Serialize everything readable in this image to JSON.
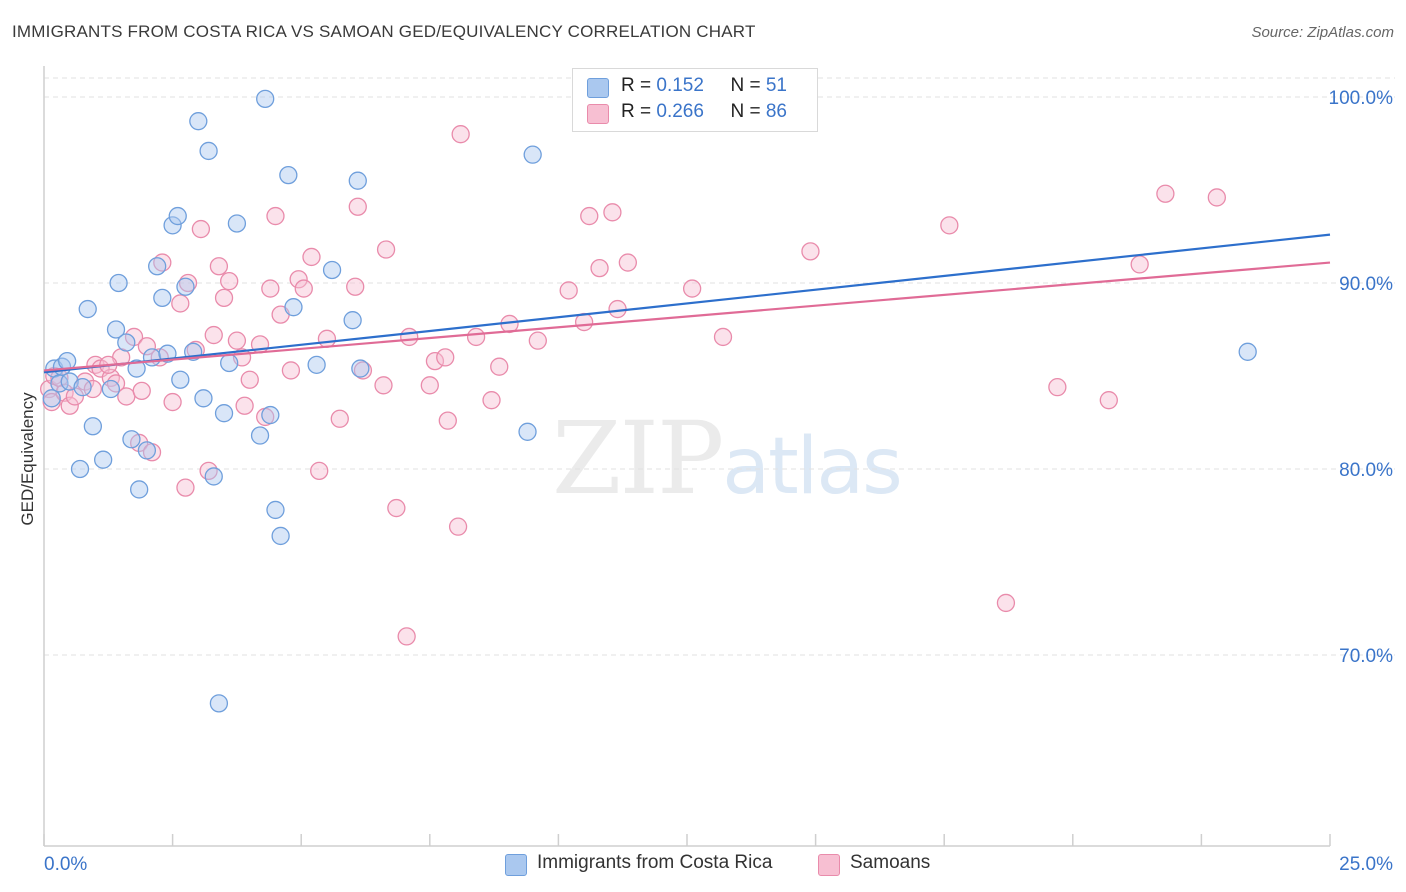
{
  "title": "IMMIGRANTS FROM COSTA RICA VS SAMOAN GED/EQUIVALENCY CORRELATION CHART",
  "source": "Source: ZipAtlas.com",
  "watermark": {
    "zip": "ZIP",
    "atlas": "atlas"
  },
  "legend": [
    {
      "r_label": "R = ",
      "r_value": "0.152",
      "n_label": "N = ",
      "n_value": "51",
      "color": "#aac8ef",
      "border": "#6f9fdc"
    },
    {
      "r_label": "R = ",
      "r_value": "0.266",
      "n_label": "N = ",
      "n_value": "86",
      "color": "#f7bfd2",
      "border": "#e98bab"
    }
  ],
  "bottom_legend": [
    {
      "label": "Immigrants from Costa Rica",
      "color": "#aac8ef",
      "border": "#6f9fdc"
    },
    {
      "label": "Samoans",
      "color": "#f7bfd2",
      "border": "#e98bab"
    }
  ],
  "chart_data": {
    "type": "scatter",
    "title": "IMMIGRANTS FROM COSTA RICA VS SAMOAN GED/EQUIVALENCY CORRELATION CHART",
    "xlabel": "",
    "ylabel": "GED/Equivalency",
    "xlim": [
      0,
      25
    ],
    "ylim": [
      61,
      102
    ],
    "x_tick_labels": [
      "0.0%",
      "25.0%"
    ],
    "y_ticks": [
      70,
      80,
      90,
      100
    ],
    "y_tick_labels": [
      "70.0%",
      "80.0%",
      "90.0%",
      "100.0%"
    ],
    "grid": true,
    "legend_position": "top-center",
    "series": [
      {
        "name": "Immigrants from Costa Rica",
        "color": "#6f9fdc",
        "fill": "#aac8ef",
        "line_color": "#2d6fcc",
        "trend": {
          "x": [
            0,
            25
          ],
          "y": [
            85.2,
            92.6
          ]
        },
        "points": [
          [
            0.15,
            83.8
          ],
          [
            0.2,
            85.4
          ],
          [
            0.3,
            84.6
          ],
          [
            0.35,
            85.5
          ],
          [
            0.45,
            85.8
          ],
          [
            0.5,
            84.7
          ],
          [
            0.7,
            80.0
          ],
          [
            0.75,
            84.4
          ],
          [
            0.85,
            88.6
          ],
          [
            0.95,
            82.3
          ],
          [
            1.15,
            80.5
          ],
          [
            1.3,
            84.3
          ],
          [
            1.4,
            87.5
          ],
          [
            1.45,
            90.0
          ],
          [
            1.6,
            86.8
          ],
          [
            1.7,
            81.6
          ],
          [
            1.8,
            85.4
          ],
          [
            1.85,
            78.9
          ],
          [
            2.0,
            81.0
          ],
          [
            2.1,
            86.0
          ],
          [
            2.2,
            90.9
          ],
          [
            2.3,
            89.2
          ],
          [
            2.4,
            86.2
          ],
          [
            2.5,
            93.1
          ],
          [
            2.6,
            93.6
          ],
          [
            2.65,
            84.8
          ],
          [
            2.75,
            89.8
          ],
          [
            2.9,
            86.3
          ],
          [
            3.0,
            98.7
          ],
          [
            3.1,
            83.8
          ],
          [
            3.2,
            97.1
          ],
          [
            3.3,
            79.6
          ],
          [
            3.4,
            67.4
          ],
          [
            3.5,
            83.0
          ],
          [
            3.6,
            85.7
          ],
          [
            3.75,
            93.2
          ],
          [
            4.2,
            81.8
          ],
          [
            4.3,
            99.9
          ],
          [
            4.5,
            77.8
          ],
          [
            4.6,
            76.4
          ],
          [
            4.75,
            95.8
          ],
          [
            4.85,
            88.7
          ],
          [
            5.3,
            85.6
          ],
          [
            5.6,
            90.7
          ],
          [
            6.0,
            88.0
          ],
          [
            6.1,
            95.5
          ],
          [
            6.15,
            85.4
          ],
          [
            9.4,
            82.0
          ],
          [
            9.5,
            96.9
          ],
          [
            23.4,
            86.3
          ],
          [
            4.4,
            82.9
          ]
        ]
      },
      {
        "name": "Samoans",
        "color": "#e98bab",
        "fill": "#f7bfd2",
        "line_color": "#e06b96",
        "trend": {
          "x": [
            0,
            25
          ],
          "y": [
            85.3,
            91.1
          ]
        },
        "points": [
          [
            0.1,
            84.3
          ],
          [
            0.15,
            83.6
          ],
          [
            0.2,
            85.0
          ],
          [
            0.3,
            84.9
          ],
          [
            0.4,
            84.1
          ],
          [
            0.5,
            83.4
          ],
          [
            0.6,
            83.9
          ],
          [
            0.8,
            84.7
          ],
          [
            0.95,
            84.3
          ],
          [
            1.0,
            85.6
          ],
          [
            1.1,
            85.4
          ],
          [
            1.3,
            84.9
          ],
          [
            1.4,
            84.6
          ],
          [
            1.5,
            86.0
          ],
          [
            1.6,
            83.9
          ],
          [
            1.75,
            87.1
          ],
          [
            1.85,
            81.4
          ],
          [
            1.9,
            84.2
          ],
          [
            2.0,
            86.6
          ],
          [
            2.1,
            80.9
          ],
          [
            2.25,
            86.0
          ],
          [
            2.3,
            91.1
          ],
          [
            2.5,
            83.6
          ],
          [
            2.65,
            88.9
          ],
          [
            2.75,
            79.0
          ],
          [
            2.8,
            90.0
          ],
          [
            2.95,
            86.4
          ],
          [
            3.05,
            92.9
          ],
          [
            3.2,
            79.9
          ],
          [
            3.3,
            87.2
          ],
          [
            3.4,
            90.9
          ],
          [
            3.5,
            89.2
          ],
          [
            3.6,
            90.1
          ],
          [
            3.75,
            86.9
          ],
          [
            3.85,
            86.0
          ],
          [
            3.9,
            83.4
          ],
          [
            4.0,
            84.8
          ],
          [
            4.2,
            86.7
          ],
          [
            4.3,
            82.8
          ],
          [
            4.4,
            89.7
          ],
          [
            4.5,
            93.6
          ],
          [
            4.6,
            88.3
          ],
          [
            4.8,
            85.3
          ],
          [
            4.95,
            90.2
          ],
          [
            5.05,
            89.7
          ],
          [
            5.2,
            91.4
          ],
          [
            5.35,
            79.9
          ],
          [
            5.5,
            87.0
          ],
          [
            5.75,
            82.7
          ],
          [
            6.05,
            89.8
          ],
          [
            6.1,
            94.1
          ],
          [
            6.2,
            85.3
          ],
          [
            6.6,
            84.5
          ],
          [
            6.65,
            91.8
          ],
          [
            6.85,
            77.9
          ],
          [
            7.05,
            71.0
          ],
          [
            7.1,
            87.1
          ],
          [
            7.5,
            84.5
          ],
          [
            7.6,
            85.8
          ],
          [
            7.8,
            86.0
          ],
          [
            7.85,
            82.6
          ],
          [
            8.05,
            76.9
          ],
          [
            8.1,
            98.0
          ],
          [
            8.4,
            87.1
          ],
          [
            8.7,
            83.7
          ],
          [
            8.85,
            85.5
          ],
          [
            9.05,
            87.8
          ],
          [
            9.6,
            86.9
          ],
          [
            10.2,
            89.6
          ],
          [
            10.5,
            87.9
          ],
          [
            10.6,
            93.6
          ],
          [
            10.8,
            90.8
          ],
          [
            11.05,
            93.8
          ],
          [
            11.15,
            88.6
          ],
          [
            11.35,
            91.1
          ],
          [
            12.6,
            89.7
          ],
          [
            13.2,
            87.1
          ],
          [
            14.9,
            91.7
          ],
          [
            17.6,
            93.1
          ],
          [
            18.7,
            72.8
          ],
          [
            19.7,
            84.4
          ],
          [
            20.7,
            83.7
          ],
          [
            21.3,
            91.0
          ],
          [
            21.8,
            94.8
          ],
          [
            22.8,
            94.6
          ],
          [
            1.25,
            85.6
          ]
        ]
      }
    ]
  }
}
